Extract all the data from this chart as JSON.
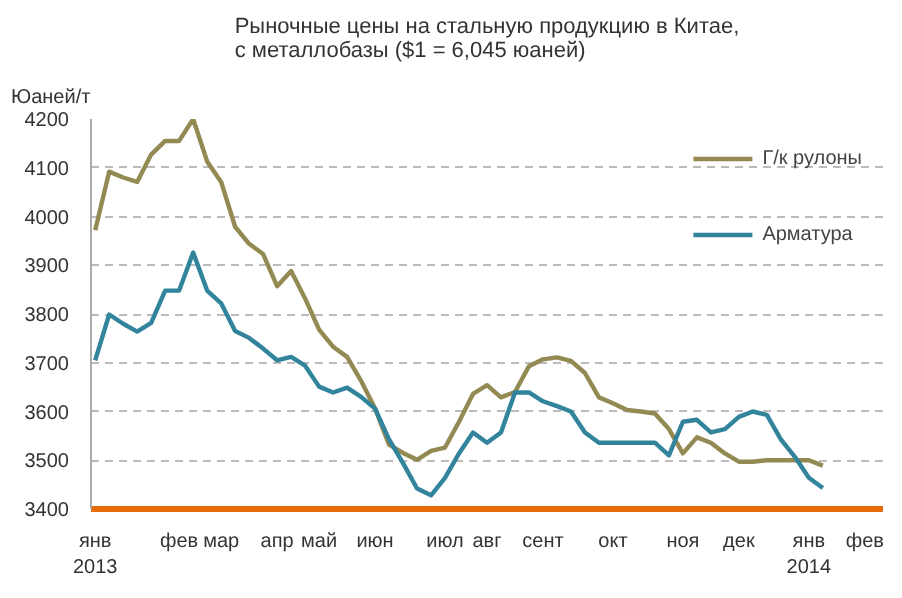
{
  "chart_data": {
    "type": "line",
    "title": "Рыночные цены на стальную продукцию в Китае,\nс металлобазы ($1 = 6,045 юаней)",
    "ylabel": "Юаней/т",
    "categories": [
      "янв\n2013",
      null,
      null,
      null,
      null,
      null,
      "фев",
      null,
      null,
      "мар",
      null,
      null,
      null,
      "апр",
      null,
      null,
      "май",
      null,
      null,
      null,
      "июн",
      null,
      null,
      null,
      null,
      "июл",
      null,
      null,
      "авг",
      null,
      null,
      null,
      "сент",
      null,
      null,
      null,
      null,
      "окт",
      null,
      null,
      null,
      null,
      "ноя",
      null,
      null,
      null,
      "дек",
      null,
      null,
      null,
      null,
      "янв\n2014",
      null,
      null,
      null,
      "фев",
      null
    ],
    "series": [
      {
        "name": "Г/к рулоны",
        "color": "#938953",
        "values": [
          3972,
          4092,
          4080,
          4071,
          4127,
          4155,
          4155,
          4200,
          4113,
          4071,
          3979,
          3944,
          3923,
          3857,
          3888,
          3832,
          3768,
          3733,
          3712,
          3663,
          3606,
          3532,
          3515,
          3501,
          3519,
          3526,
          3579,
          3636,
          3654,
          3629,
          3640,
          3693,
          3707,
          3711,
          3704,
          3679,
          3629,
          3617,
          3603,
          3600,
          3596,
          3564,
          3514,
          3547,
          3536,
          3514,
          3497,
          3497,
          3500,
          3500,
          3500,
          3500,
          3489,
          null,
          null,
          null,
          null
        ]
      },
      {
        "name": "Арматура",
        "color": "#31849b",
        "values": [
          3705,
          3799,
          3780,
          3764,
          3782,
          3848,
          3848,
          3926,
          3848,
          3822,
          3765,
          3751,
          3729,
          3705,
          3712,
          3694,
          3651,
          3639,
          3649,
          3630,
          3606,
          3543,
          3494,
          3442,
          3428,
          3464,
          3514,
          3557,
          3536,
          3557,
          3639,
          3639,
          3621,
          3611,
          3600,
          3557,
          3536,
          3536,
          3536,
          3536,
          3536,
          3510,
          3579,
          3583,
          3557,
          3564,
          3589,
          3600,
          3593,
          3543,
          3507,
          3464,
          3443,
          null,
          null,
          null,
          null
        ]
      }
    ],
    "ylim": [
      3400,
      4200
    ],
    "yticks": [
      3400,
      3500,
      3600,
      3700,
      3800,
      3900,
      4000,
      4100,
      4200
    ],
    "grid": "y",
    "legend": "top right",
    "marker": "none",
    "line_style": "solid"
  }
}
